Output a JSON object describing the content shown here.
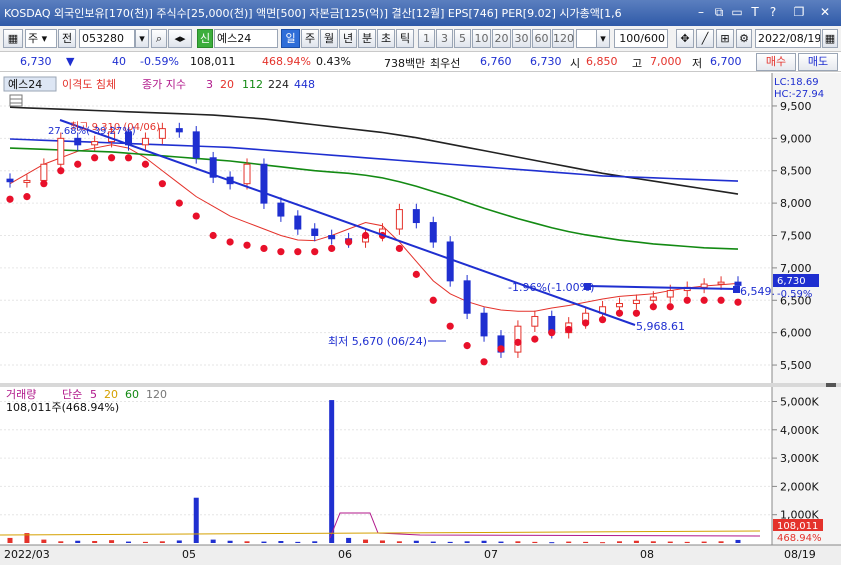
{
  "titlebar": {
    "title": "KOSDAQ 외국인보유[170(천)] 주식수[25,000(천)] 액면[500] 자본금[125(억)] 결산[12월] EPS[746] PER[9.02] 시가총액[1,6",
    "icons": [
      "minimize-icon",
      "link-icon",
      "pin-icon",
      "text-icon",
      "help-icon",
      "restore-icon",
      "close-icon"
    ]
  },
  "toolbar": {
    "market": "주",
    "market_type": "전",
    "code": "053280",
    "stock_badge": "신",
    "stock_name": "예스24",
    "periods": [
      "일",
      "주",
      "월",
      "년",
      "분",
      "초",
      "틱"
    ],
    "active_period": "일",
    "intervals": [
      "1",
      "3",
      "5",
      "10",
      "20",
      "30",
      "60",
      "120"
    ],
    "count": "100/600",
    "date": "2022/08/19"
  },
  "quote": {
    "price": "6,730",
    "change": "40",
    "change_pct": "-0.59%",
    "volume": "108,011",
    "volume_ratio": "468.94%",
    "turnover": "0.43%",
    "amount": "738백만",
    "best_ask_label": "최우선",
    "best_ask": "6,760",
    "best_bid": "6,730",
    "open_label": "시",
    "open": "6,850",
    "high_label": "고",
    "high": "7,000",
    "low_label": "저",
    "low": "6,700",
    "buy_label": "매수",
    "sell_label": "매도"
  },
  "colors": {
    "up": "#e4322b",
    "down": "#1f2fd0",
    "ma5": "#e4322b",
    "ma20": "#1f2fd0",
    "ma112": "#138a13",
    "ma224": "#222222",
    "ma448": "#1f2fd0",
    "trend": "#1f2fd0"
  },
  "price_panel": {
    "legend": {
      "name": "예스24",
      "indicator": "이격도 침체",
      "ma_label": "종가 지수",
      "ma_periods": [
        "3",
        "20",
        "112",
        "224",
        "448"
      ]
    },
    "lc": "LC:18.69",
    "hc": "HC:-27.94",
    "yticks": [
      "9,500",
      "9,000",
      "8,500",
      "8,000",
      "7,500",
      "7,000",
      "6,500",
      "6,000",
      "5,500"
    ],
    "current_price_tag": "6,730",
    "current_pct_tag": "-0.59%",
    "annotations": {
      "high": "최고 9,310 (04/06)",
      "high_pct": "27.68%(-39.27%)",
      "low": "최저 5,670 (06/24)",
      "trend_pct": "-1.96%(-1.00%)",
      "trend_value": "5,968.61",
      "hline_value": "6,549."
    }
  },
  "volume_panel": {
    "legend": {
      "name": "거래량",
      "ma_label": "단순",
      "ma_periods": [
        "5",
        "20",
        "60",
        "120"
      ]
    },
    "current_label": "108,011주(468.94%)",
    "yticks": [
      "5,000K",
      "4,000K",
      "3,000K",
      "2,000K",
      "1,000K"
    ],
    "current_tag": "108,011",
    "current_pct_tag": "468.94%"
  },
  "x_axis": {
    "labels": [
      "2022/03",
      "05",
      "06",
      "07",
      "08"
    ],
    "right_label": "08/19"
  },
  "chart_data": {
    "type": "candlestick",
    "title": "",
    "ylim": [
      5300,
      9700
    ],
    "moving_averages": [
      {
        "name": "20",
        "values": [
          8300,
          8450,
          8600,
          8700,
          8800,
          8850,
          8900,
          8850,
          8700,
          8500,
          8300,
          8100,
          7950,
          7800,
          7700,
          7600,
          7500,
          7430,
          7420,
          7500,
          7600,
          7700,
          7650,
          7400,
          7100,
          6800,
          6600,
          6480,
          6400,
          6350,
          6330,
          6330,
          6380,
          6420,
          6470,
          6520,
          6560,
          6580,
          6600,
          6650,
          6690,
          6720,
          6740,
          6760
        ]
      },
      {
        "name": "112",
        "values": [
          8850,
          8840,
          8830,
          8820,
          8810,
          8800,
          8790,
          8770,
          8750,
          8730,
          8710,
          8690,
          8670,
          8650,
          8620,
          8590,
          8560,
          8530,
          8500,
          8480,
          8460,
          8430,
          8390,
          8330,
          8260,
          8180,
          8100,
          8010,
          7920,
          7840,
          7760,
          7690,
          7620,
          7560,
          7510,
          7470,
          7430,
          7400,
          7370,
          7350,
          7330,
          7310,
          7300,
          7290
        ]
      },
      {
        "name": "224",
        "values": [
          9480,
          9470,
          9460,
          9450,
          9440,
          9430,
          9420,
          9410,
          9400,
          9390,
          9380,
          9370,
          9360,
          9340,
          9320,
          9300,
          9270,
          9240,
          9210,
          9180,
          9150,
          9120,
          9090,
          9050,
          9010,
          8960,
          8910,
          8860,
          8810,
          8760,
          8710,
          8660,
          8610,
          8560,
          8510,
          8460,
          8420,
          8380,
          8340,
          8300,
          8260,
          8220,
          8180,
          8140
        ]
      },
      {
        "name": "448",
        "values": [
          8990,
          8980,
          8970,
          8960,
          8950,
          8940,
          8930,
          8920,
          8910,
          8900,
          8890,
          8880,
          8870,
          8860,
          8840,
          8820,
          8800,
          8780,
          8760,
          8740,
          8720,
          8700,
          8680,
          8660,
          8640,
          8620,
          8600,
          8580,
          8560,
          8540,
          8520,
          8500,
          8480,
          8460,
          8440,
          8420,
          8410,
          8400,
          8390,
          8380,
          8370,
          8360,
          8350,
          8340
        ]
      }
    ],
    "closes": [
      8330,
      8350,
      8600,
      9000,
      8900,
      8950,
      9100,
      8900,
      9000,
      9150,
      9100,
      8700,
      8400,
      8300,
      8600,
      8000,
      7800,
      7600,
      7500,
      7450,
      7400,
      7500,
      7600,
      7900,
      7700,
      7400,
      6800,
      6300,
      5950,
      5700,
      6100,
      6250,
      6000,
      6150,
      6300,
      6400,
      6450,
      6500,
      6550,
      6650,
      6700,
      6750,
      6780,
      6730
    ],
    "oversold_markers": [
      8060,
      8100,
      8300,
      8500,
      8600,
      8700,
      8700,
      8700,
      8600,
      8300,
      8000,
      7800,
      7500,
      7400,
      7350,
      7300,
      7250,
      7250,
      7250,
      7300,
      7400,
      7500,
      7500,
      7300,
      6900,
      6500,
      6100,
      5800,
      5550,
      5750,
      5850,
      5900,
      6000,
      6050,
      6150,
      6200,
      6300,
      6300,
      6400,
      6400,
      6500,
      6500,
      6500,
      6470
    ],
    "volume": {
      "ylim": [
        0,
        5300
      ],
      "unit": "K",
      "values": [
        180,
        350,
        120,
        60,
        80,
        70,
        100,
        50,
        40,
        60,
        90,
        1600,
        120,
        80,
        60,
        50,
        70,
        40,
        60,
        5050,
        180,
        120,
        90,
        60,
        80,
        50,
        40,
        60,
        80,
        50,
        60,
        40,
        30,
        50,
        40,
        30,
        60,
        80,
        60,
        50,
        40,
        50,
        60,
        108
      ]
    }
  }
}
